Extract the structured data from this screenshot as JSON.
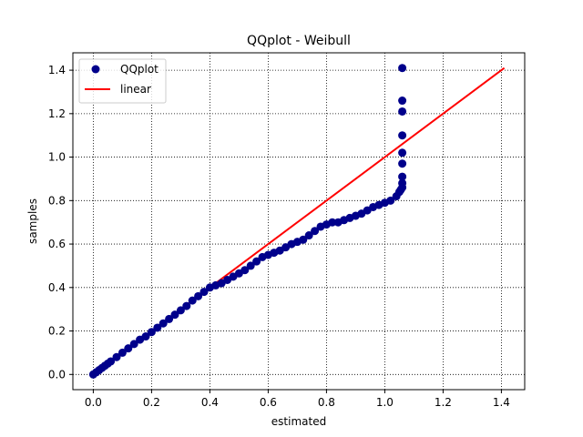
{
  "chart_data": {
    "type": "scatter",
    "title": "QQplot - Weibull",
    "xlabel": "estimated",
    "ylabel": "samples",
    "xlim": [
      -0.07,
      1.48
    ],
    "ylim": [
      -0.07,
      1.48
    ],
    "xticks": [
      0.0,
      0.2,
      0.4,
      0.6,
      0.8,
      1.0,
      1.2,
      1.4
    ],
    "yticks": [
      0.0,
      0.2,
      0.4,
      0.6,
      0.8,
      1.0,
      1.2,
      1.4
    ],
    "tick_labels": [
      "0.0",
      "0.2",
      "0.4",
      "0.6",
      "0.8",
      "1.0",
      "1.2",
      "1.4"
    ],
    "grid": true,
    "grid_style": "dotted",
    "legend_position": "top-left",
    "series": [
      {
        "name": "QQplot",
        "kind": "scatter",
        "color": "#00008b",
        "x": [
          0.0,
          0.01,
          0.02,
          0.03,
          0.04,
          0.05,
          0.06,
          0.08,
          0.1,
          0.12,
          0.14,
          0.16,
          0.18,
          0.2,
          0.22,
          0.24,
          0.26,
          0.28,
          0.3,
          0.32,
          0.34,
          0.36,
          0.38,
          0.4,
          0.42,
          0.44,
          0.46,
          0.48,
          0.5,
          0.52,
          0.54,
          0.56,
          0.58,
          0.6,
          0.62,
          0.64,
          0.66,
          0.68,
          0.7,
          0.72,
          0.74,
          0.76,
          0.78,
          0.8,
          0.82,
          0.84,
          0.86,
          0.88,
          0.9,
          0.92,
          0.94,
          0.96,
          0.98,
          1.0,
          1.02,
          1.04,
          1.05,
          1.055,
          1.06,
          1.06,
          1.06,
          1.06,
          1.06,
          1.06,
          1.06,
          1.06,
          1.06
        ],
        "y": [
          0.0,
          0.01,
          0.02,
          0.03,
          0.04,
          0.05,
          0.06,
          0.08,
          0.1,
          0.12,
          0.14,
          0.16,
          0.175,
          0.195,
          0.215,
          0.235,
          0.255,
          0.275,
          0.295,
          0.315,
          0.34,
          0.36,
          0.38,
          0.4,
          0.41,
          0.42,
          0.435,
          0.45,
          0.465,
          0.48,
          0.5,
          0.52,
          0.54,
          0.55,
          0.56,
          0.57,
          0.585,
          0.6,
          0.61,
          0.62,
          0.64,
          0.66,
          0.68,
          0.69,
          0.7,
          0.7,
          0.71,
          0.72,
          0.73,
          0.74,
          0.755,
          0.77,
          0.78,
          0.79,
          0.8,
          0.82,
          0.84,
          0.85,
          0.86,
          0.88,
          0.91,
          0.97,
          1.02,
          1.1,
          1.21,
          1.26,
          1.41
        ]
      },
      {
        "name": "linear",
        "kind": "line",
        "color": "#ff0000",
        "x": [
          0.0,
          1.41
        ],
        "y": [
          0.0,
          1.41
        ]
      }
    ]
  }
}
